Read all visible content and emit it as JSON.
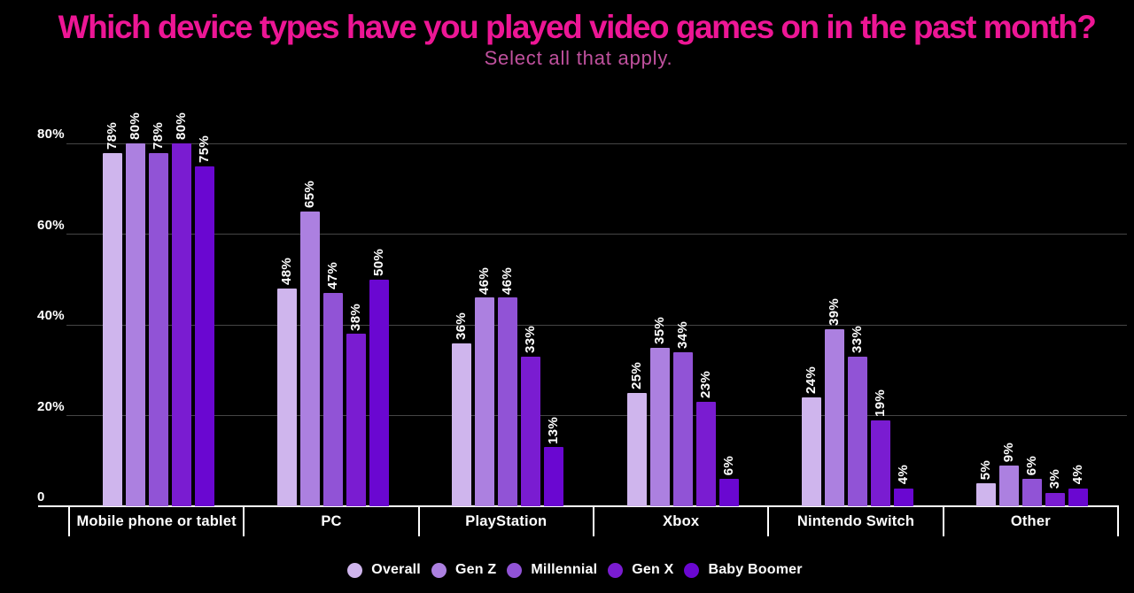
{
  "title": "Which device types have you played video games on in the past month?",
  "subtitle": "Select all that apply.",
  "colors": {
    "background": "#000000",
    "title": "#ED1695",
    "subtitle": "#C0519E",
    "gridline": "#454545",
    "axis_line": "#FFFFFF",
    "text": "#FFFFFF"
  },
  "chart_data": {
    "type": "bar",
    "title": "Which device types have you played video games on in the past month?",
    "subtitle": "Select all that apply.",
    "categories": [
      "Mobile phone or tablet",
      "PC",
      "PlayStation",
      "Xbox",
      "Nintendo Switch",
      "Other"
    ],
    "series": [
      {
        "name": "Overall",
        "color": "#CFB5ED",
        "values": [
          78,
          48,
          36,
          25,
          24,
          5
        ]
      },
      {
        "name": "Gen Z",
        "color": "#AC80E0",
        "values": [
          80,
          65,
          46,
          35,
          39,
          9
        ]
      },
      {
        "name": "Millennial",
        "color": "#9153D6",
        "values": [
          78,
          47,
          46,
          34,
          33,
          6
        ]
      },
      {
        "name": "Gen X",
        "color": "#7A1CD1",
        "values": [
          80,
          38,
          33,
          23,
          19,
          3
        ]
      },
      {
        "name": "Baby Boomer",
        "color": "#6A07D1",
        "values": [
          75,
          50,
          13,
          6,
          4,
          4
        ]
      }
    ],
    "value_suffix": "%",
    "y_axis": {
      "tick_labels": [
        "0",
        "20%",
        "40%",
        "60%",
        "80%"
      ],
      "tick_values": [
        0,
        20,
        40,
        60,
        80
      ]
    },
    "ylim": [
      0,
      100
    ],
    "grid": true,
    "legend_position": "bottom"
  }
}
